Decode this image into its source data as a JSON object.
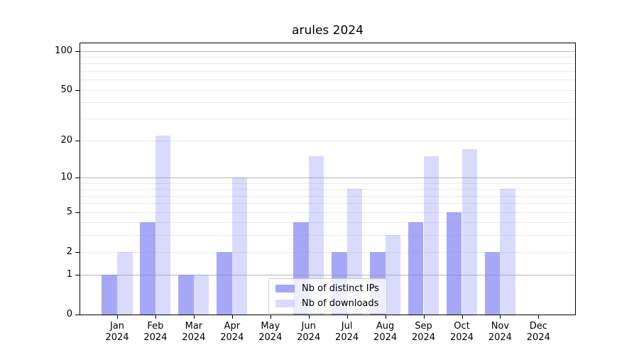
{
  "chart_data": {
    "type": "bar",
    "title": "arules 2024",
    "categories": [
      "Jan",
      "Feb",
      "Mar",
      "Apr",
      "May",
      "Jun",
      "Jul",
      "Aug",
      "Sep",
      "Oct",
      "Nov",
      "Dec"
    ],
    "x_tick_year": "2024",
    "series": [
      {
        "name": "Nb of distinct IPs",
        "color": "#8083f4",
        "alpha": 0.7,
        "values": [
          1,
          4,
          1,
          2,
          0,
          4,
          2,
          2,
          4,
          5,
          2,
          0
        ]
      },
      {
        "name": "Nb of downloads",
        "color": "#8083f4",
        "alpha": 0.3,
        "values": [
          2,
          22,
          1,
          10,
          0,
          15,
          8,
          3,
          15,
          17,
          8,
          0
        ]
      }
    ],
    "xlabel": "",
    "ylabel": "",
    "y_scale": "log1p",
    "ylim": [
      0,
      114
    ],
    "y_ticks": [
      0,
      1,
      2,
      5,
      10,
      20,
      50,
      100
    ],
    "y_major_gridlines": [
      1,
      10,
      100
    ],
    "y_minor_gridlines": [
      3,
      4,
      6,
      7,
      8,
      9,
      30,
      40,
      60,
      70,
      80,
      90
    ],
    "grid": true,
    "legend_position": "lower center",
    "colors": {
      "major_grid": "#b5b5b5",
      "minor_grid": "#eaeaea",
      "frame": "#000000",
      "background": "#ffffff"
    }
  }
}
